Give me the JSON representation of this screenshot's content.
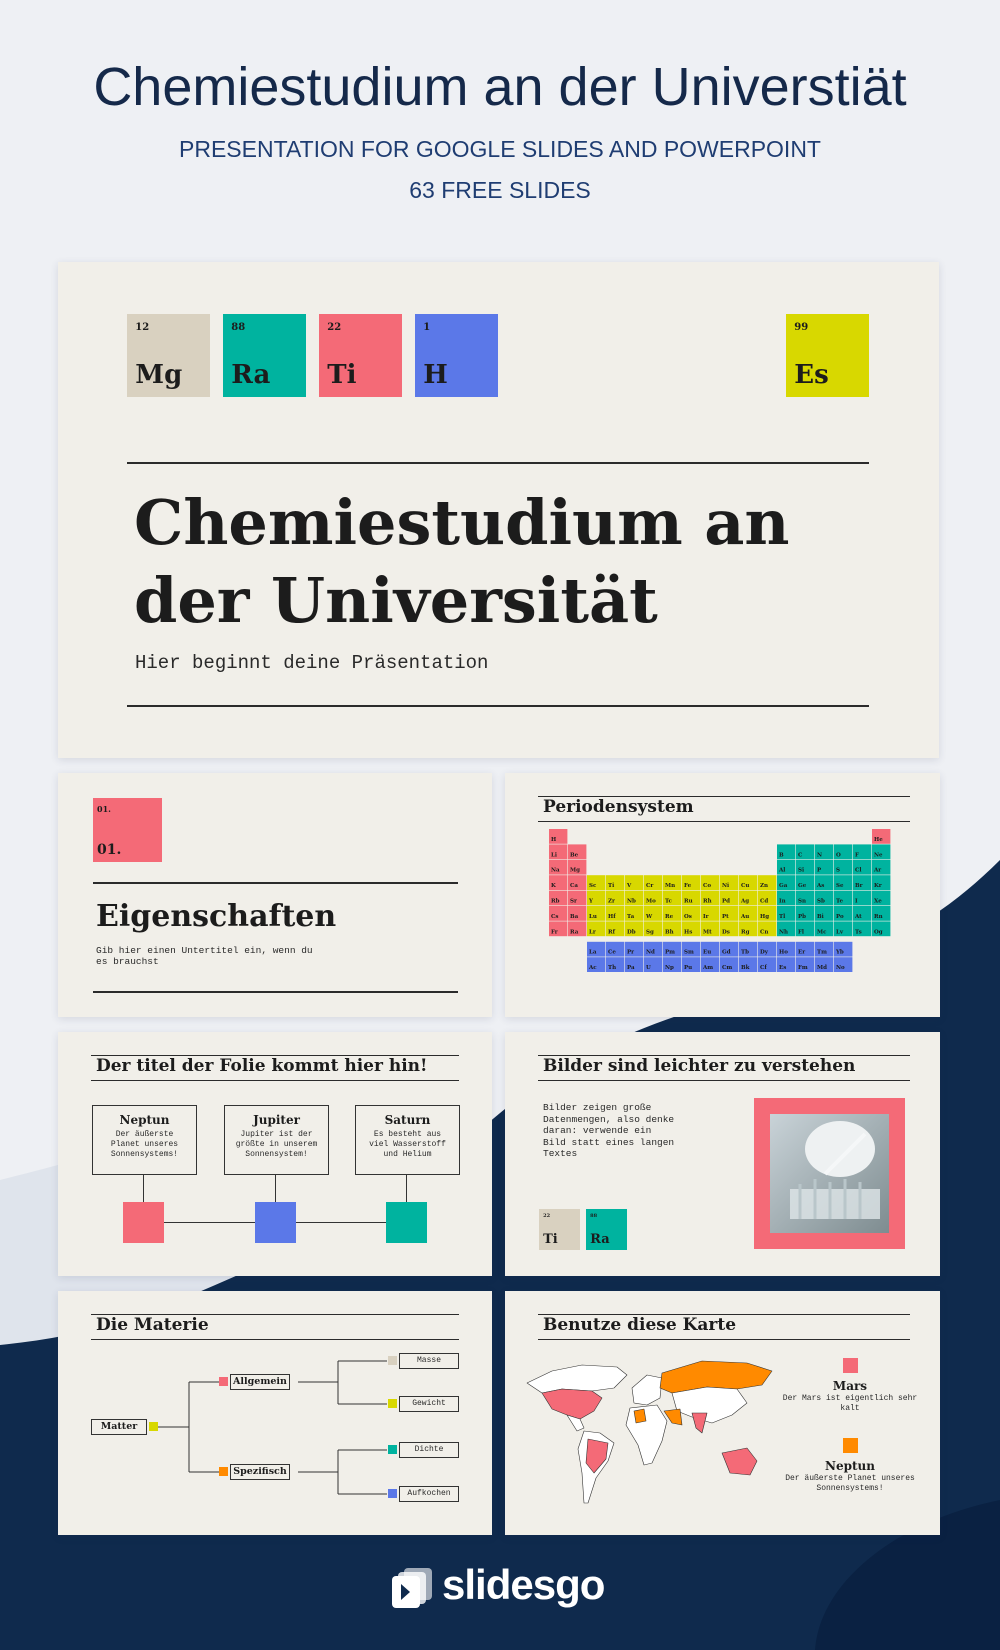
{
  "header": {
    "title": "Chemiestudium an der Universtiät",
    "subtitle": "PRESENTATION FOR GOOGLE SLIDES AND POWERPOINT",
    "count": "63 FREE SLIDES"
  },
  "cover": {
    "elements": [
      {
        "number": "12",
        "symbol": "Mg"
      },
      {
        "number": "88",
        "symbol": "Ra"
      },
      {
        "number": "22",
        "symbol": "Ti"
      },
      {
        "number": "1",
        "symbol": "H"
      },
      {
        "number": "99",
        "symbol": "Es"
      }
    ],
    "title": "Chemiestudium an der Universität",
    "subtitle": "Hier beginnt deine Präsentation"
  },
  "section": {
    "number_small": "01.",
    "number": "01.",
    "title": "Eigenschaften",
    "subtitle": "Gib hier einen Untertitel ein, wenn du es brauchst"
  },
  "periodic": {
    "title": "Periodensystem",
    "symbols": [
      "H",
      "He",
      "Li",
      "Be",
      "B",
      "C",
      "N",
      "O",
      "F",
      "Ne",
      "Na",
      "Mg",
      "Al",
      "Si",
      "P",
      "S",
      "Cl",
      "Ar",
      "K",
      "Ca",
      "Sc",
      "Ti",
      "V",
      "Cr",
      "Mn",
      "Fe",
      "Co",
      "Ni",
      "Cu",
      "Zn",
      "Ga",
      "Ge",
      "As",
      "Se",
      "Br",
      "Kr",
      "Rb",
      "Sr",
      "Y",
      "Zr",
      "Nb",
      "Mo",
      "Tc",
      "Ru",
      "Rh",
      "Pd",
      "Ag",
      "Cd",
      "In",
      "Sn",
      "Sb",
      "Te",
      "I",
      "Xe",
      "Cs",
      "Ba",
      "La",
      "Ce",
      "Pr",
      "Nd",
      "Pm",
      "Sm",
      "Eu",
      "Gd",
      "Tb",
      "Dy",
      "Ho",
      "Er",
      "Tm",
      "Yb",
      "Lu",
      "Hf",
      "Ta",
      "W",
      "Re",
      "Os",
      "Ir",
      "Pt",
      "Au",
      "Hg",
      "Tl",
      "Pb",
      "Bi",
      "Po",
      "At",
      "Rn",
      "Fr",
      "Ra",
      "Ac",
      "Th",
      "Pa",
      "U",
      "Np",
      "Pu",
      "Am",
      "Cm",
      "Bk",
      "Cf",
      "Es",
      "Fm",
      "Md",
      "No",
      "Lr",
      "Rf",
      "Db",
      "Sg",
      "Bh",
      "Hs",
      "Mt",
      "Ds",
      "Rg",
      "Cn",
      "Nh",
      "Fl",
      "Mc",
      "Lv",
      "Ts",
      "Og"
    ]
  },
  "planets": {
    "title": "Der titel der Folie kommt hier hin!",
    "items": [
      {
        "name": "Neptun",
        "text": "Der äußerste Planet unseres Sonnensystems!"
      },
      {
        "name": "Jupiter",
        "text": "Jupiter ist der größte in unserem Sonnensystem!"
      },
      {
        "name": "Saturn",
        "text": "Es besteht aus viel Wasserstoff und Helium"
      }
    ]
  },
  "images": {
    "title": "Bilder sind leichter zu verstehen",
    "text": "Bilder zeigen große Datenmengen, also denke daran: verwende ein Bild statt eines langen Textes",
    "elements": [
      {
        "number": "22",
        "symbol": "Ti"
      },
      {
        "number": "88",
        "symbol": "Ra"
      }
    ]
  },
  "matter": {
    "title": "Die Materie",
    "root": "Matter",
    "branches": [
      {
        "label": "Allgemein",
        "leaves": [
          "Masse",
          "Gewicht"
        ]
      },
      {
        "label": "Spezifisch",
        "leaves": [
          "Dichte",
          "Aufkochen"
        ]
      }
    ]
  },
  "map": {
    "title": "Benutze diese Karte",
    "legend": [
      {
        "name": "Mars",
        "text": "Der Mars ist eigentlich sehr kalt"
      },
      {
        "name": "Neptun",
        "text": "Der äußerste Planet unseres Sonnensystems!"
      }
    ]
  },
  "footer": {
    "logo": "slidesgo"
  }
}
